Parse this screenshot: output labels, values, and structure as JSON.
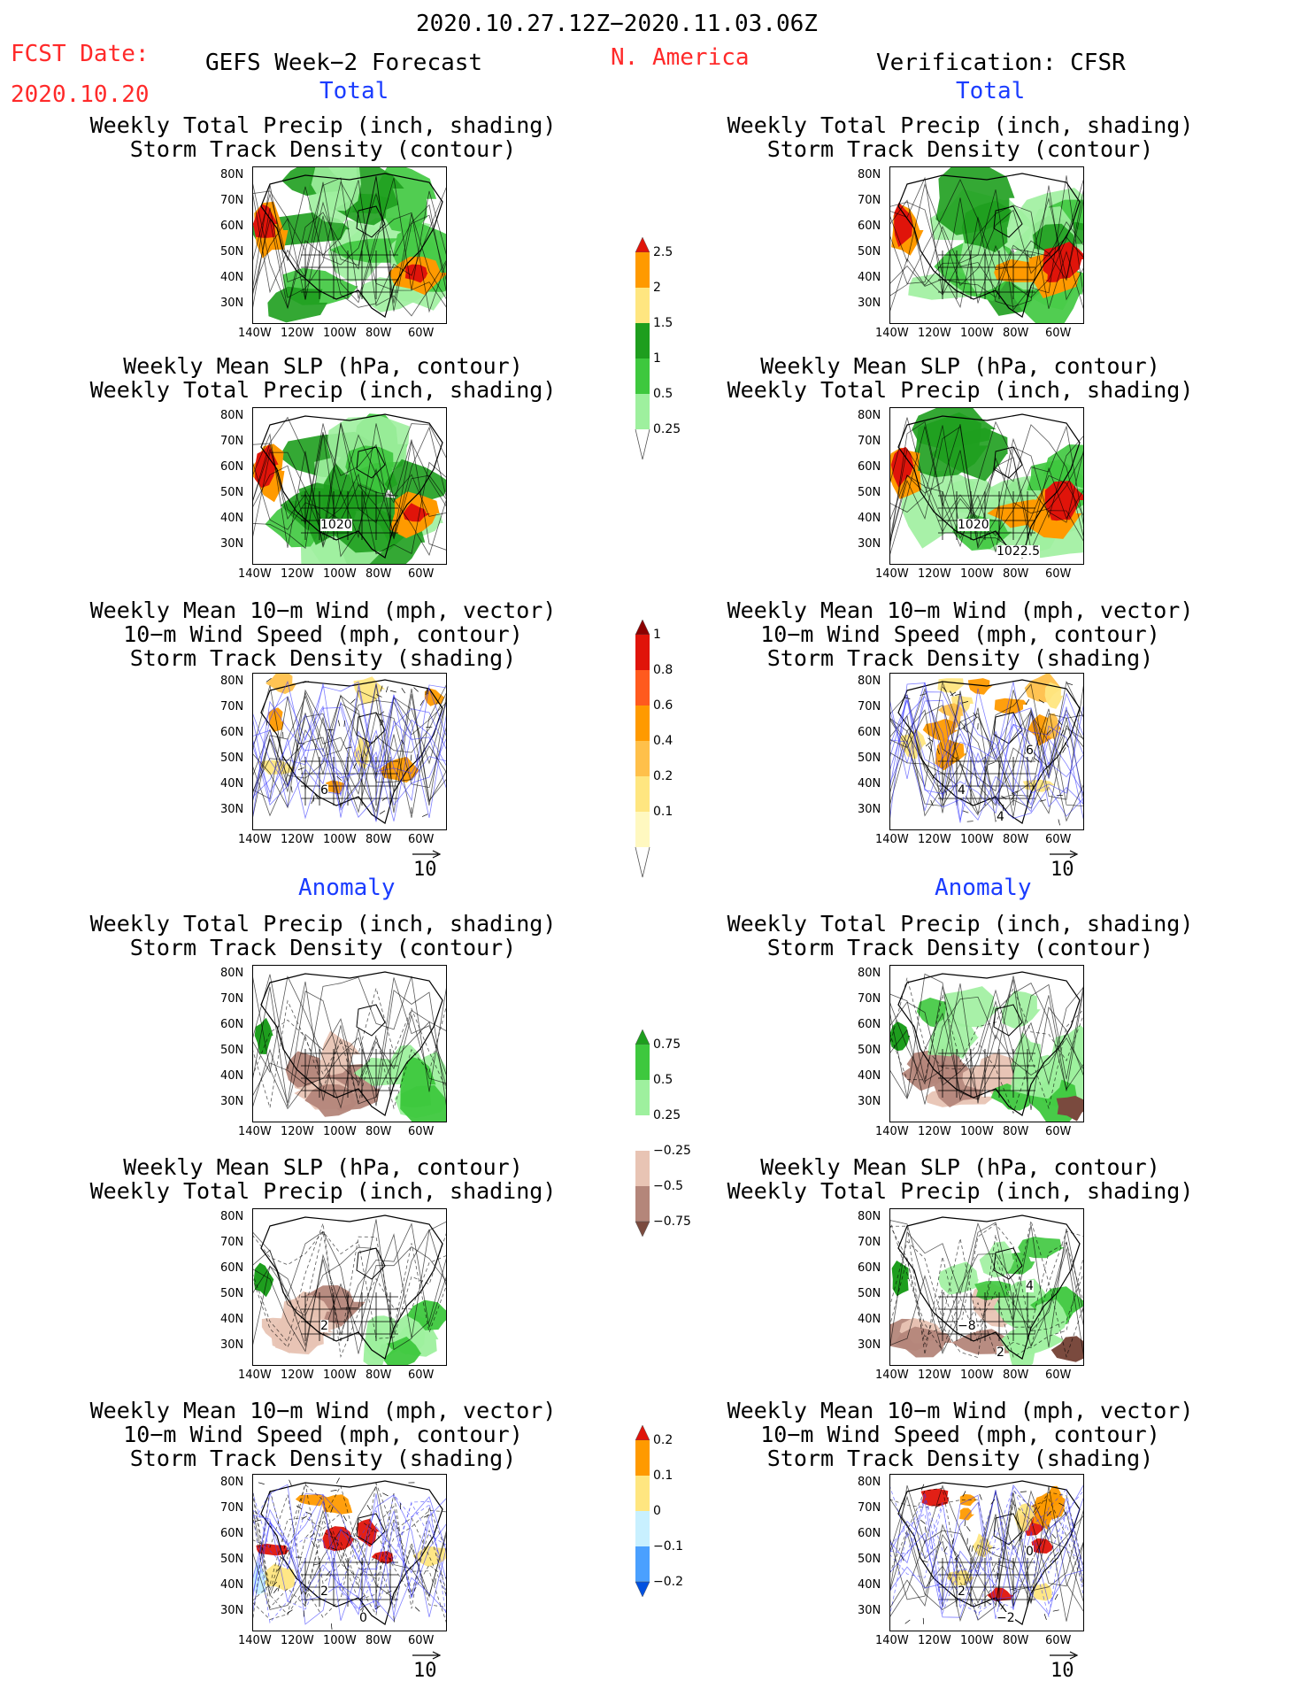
{
  "header": {
    "date_range": "2020.10.27.12Z−2020.11.03.06Z",
    "fcst_label": "FCST Date:",
    "fcst_date": "2020.10.20",
    "left_title": "GEFS Week−2 Forecast",
    "region": "N. America",
    "right_title": "Verification: CFSR"
  },
  "sections": {
    "total": "Total",
    "anomaly": "Anomaly"
  },
  "panel_titles": {
    "precip_storm": [
      "Weekly Total Precip (inch, shading)",
      "Storm Track Density (contour)"
    ],
    "slp_precip": [
      "Weekly Mean SLP (hPa, contour)",
      "Weekly Total Precip (inch, shading)"
    ],
    "wind_storm": [
      "Weekly Mean 10−m Wind (mph, vector)",
      "10−m Wind Speed (mph, contour)",
      "Storm Track Density (shading)"
    ]
  },
  "axes": {
    "lat_labels": [
      "80N",
      "70N",
      "60N",
      "50N",
      "40N",
      "30N"
    ],
    "lon_labels": [
      "140W",
      "120W",
      "100W",
      "80W",
      "60W"
    ]
  },
  "vector_reference": "10",
  "colorbars": {
    "precip_total": {
      "labels": [
        "2.5",
        "2",
        "1.5",
        "1",
        "0.5",
        "0.25"
      ],
      "colors": [
        "#e0140a",
        "#ff9a00",
        "#ffe680",
        "#1e9e1e",
        "#3ec83e",
        "#9ef09e",
        "#ffffff"
      ]
    },
    "storm_total": {
      "labels": [
        "1",
        "0.8",
        "0.6",
        "0.4",
        "0.2",
        "0.1"
      ],
      "colors": [
        "#8b0000",
        "#e0140a",
        "#ff5a1e",
        "#ff9a00",
        "#ffc04a",
        "#ffe680",
        "#fff8c0",
        "#ffffff"
      ]
    },
    "precip_anom": {
      "labels": [
        "0.75",
        "0.5",
        "0.25",
        "−0.25",
        "−0.5",
        "−0.75"
      ],
      "colors": [
        "#1e9e1e",
        "#3ec83e",
        "#9ef09e",
        "#ffffff",
        "#e8c4b4",
        "#b4867a",
        "#7a4a3e"
      ]
    },
    "storm_anom": {
      "labels": [
        "0.2",
        "0.1",
        "0",
        "−0.1",
        "−0.2"
      ],
      "colors": [
        "#e0140a",
        "#ff9a00",
        "#ffe680",
        "#c8f0ff",
        "#4aa0ff",
        "#0050e0"
      ]
    }
  },
  "map_contour_labels": {
    "slp_total_forecast": [
      "1020"
    ],
    "slp_total_verif": [
      "1020",
      "1022.5"
    ],
    "wind_total_forecast": [
      "6"
    ],
    "wind_total_verif": [
      "4",
      "4",
      "6"
    ],
    "slp_anom_forecast": [
      "2"
    ],
    "slp_anom_verif": [
      "−8",
      "2",
      "4"
    ],
    "wind_anom_forecast": [
      "2",
      "0"
    ],
    "wind_anom_verif": [
      "2",
      "−2",
      "0"
    ]
  }
}
